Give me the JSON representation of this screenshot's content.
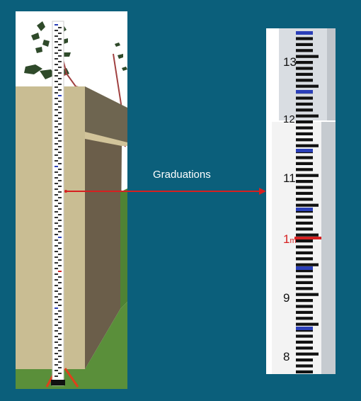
{
  "annotation": {
    "label": "Graduations"
  },
  "staff": {
    "visible_numbers": [
      "13",
      "12",
      "11",
      "1",
      "9",
      "8"
    ],
    "meter_unit": "m"
  },
  "colors": {
    "background": "#0b5f7b",
    "arrow": "#d62020",
    "blue_mark": "#2b3fb8",
    "red_mark": "#d62020",
    "tripod": "#e0401a"
  }
}
